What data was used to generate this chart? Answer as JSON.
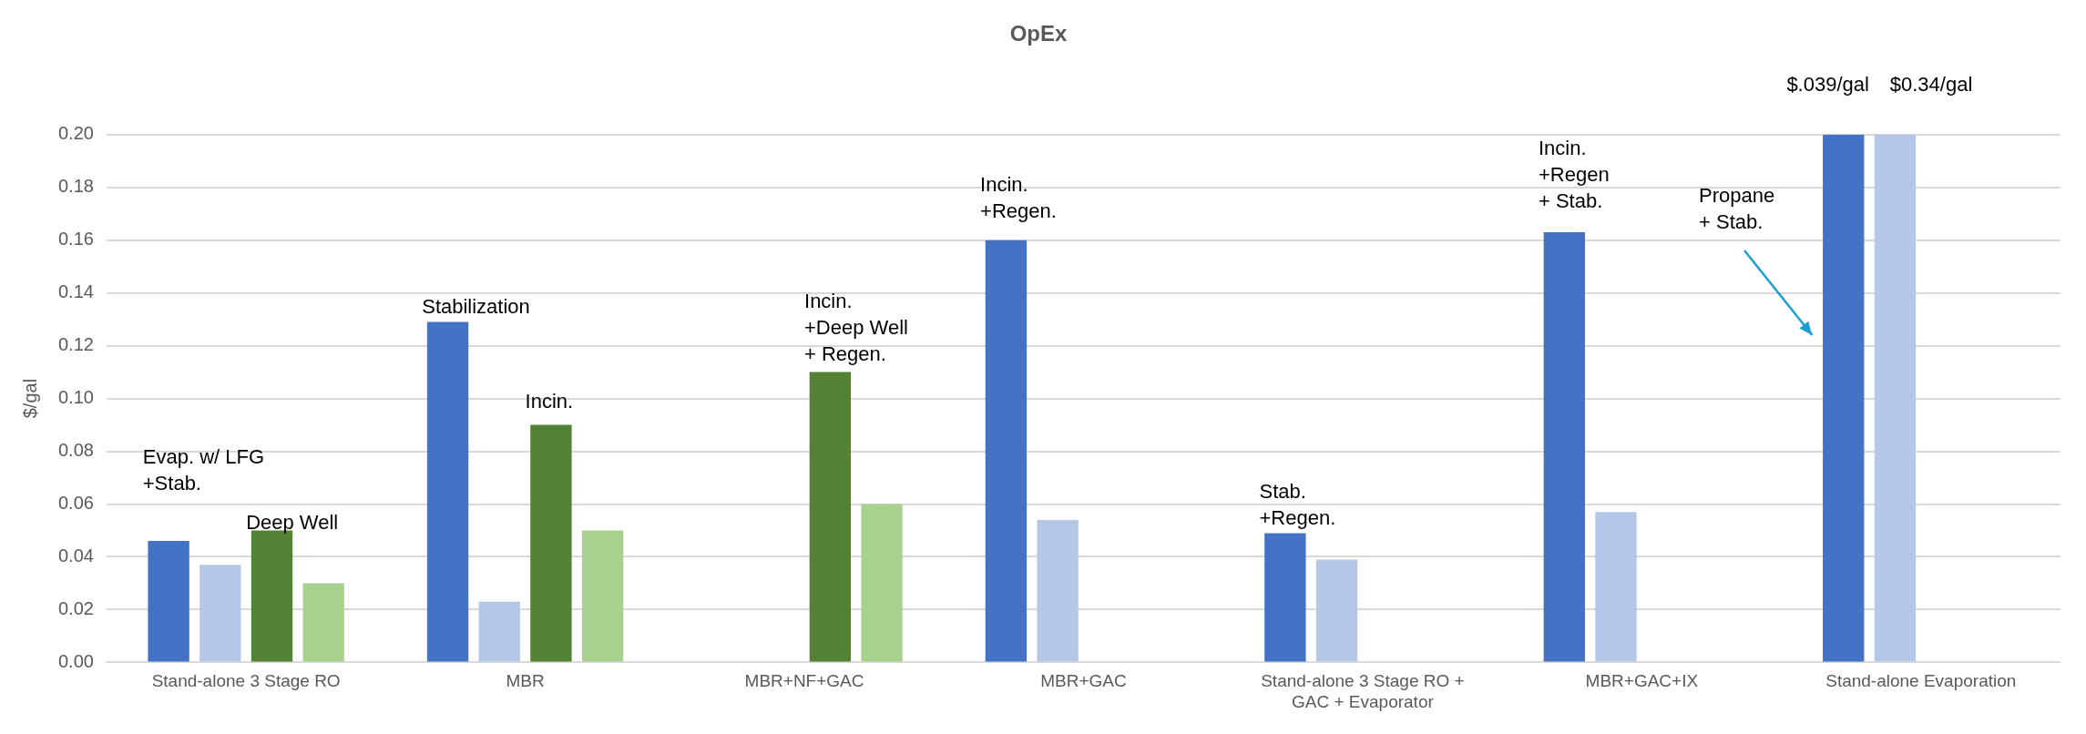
{
  "chart_data": {
    "type": "bar",
    "title": "OpEx",
    "ylabel": "$/gal",
    "categories": [
      "Stand-alone 3 Stage RO",
      "MBR",
      "MBR+NF+GAC",
      "MBR+GAC",
      "Stand-alone 3 Stage RO + GAC + Evaporator",
      "MBR+GAC+IX",
      "Stand-alone Evaporation"
    ],
    "series": [
      {
        "color": "#4472c4",
        "values": [
          0.046,
          0.129,
          null,
          0.16,
          0.049,
          0.163,
          0.2
        ]
      },
      {
        "color": "#b4c7e7",
        "values": [
          0.037,
          0.023,
          null,
          0.054,
          0.039,
          0.057,
          0.2
        ]
      },
      {
        "color": "#548235",
        "values": [
          0.05,
          0.09,
          0.11,
          null,
          null,
          null,
          null
        ]
      },
      {
        "color": "#a9d18e",
        "values": [
          0.03,
          0.05,
          0.06,
          null,
          null,
          null,
          null
        ]
      }
    ],
    "ylim": [
      0,
      0.2
    ],
    "yticks": [
      {
        "value": 0,
        "label": "0.00"
      },
      {
        "value": 0.02,
        "label": "0.02"
      },
      {
        "value": 0.04,
        "label": "0.04"
      },
      {
        "value": 0.06,
        "label": "0.06"
      },
      {
        "value": 0.08,
        "label": "0.08"
      },
      {
        "value": 0.1,
        "label": "0.10"
      },
      {
        "value": 0.12,
        "label": "0.12"
      },
      {
        "value": 0.14,
        "label": "0.14"
      },
      {
        "value": 0.16,
        "label": "0.16"
      },
      {
        "value": 0.18,
        "label": "0.18"
      },
      {
        "value": 0.2,
        "label": "0.20"
      }
    ],
    "grid": "y",
    "legend": false,
    "annotations": [
      "Evap. w/ LFG\n+Stab.",
      "Deep Well",
      "Stabilization",
      "Incin.",
      "Incin.\n+Deep Well\n+ Regen.",
      "Incin.\n+Regen.",
      "Stab.\n+Regen.",
      "Incin.\n+Regen\n+ Stab.",
      "$.039/gal",
      "$0.34/gal",
      "Propane\n+ Stab."
    ]
  }
}
